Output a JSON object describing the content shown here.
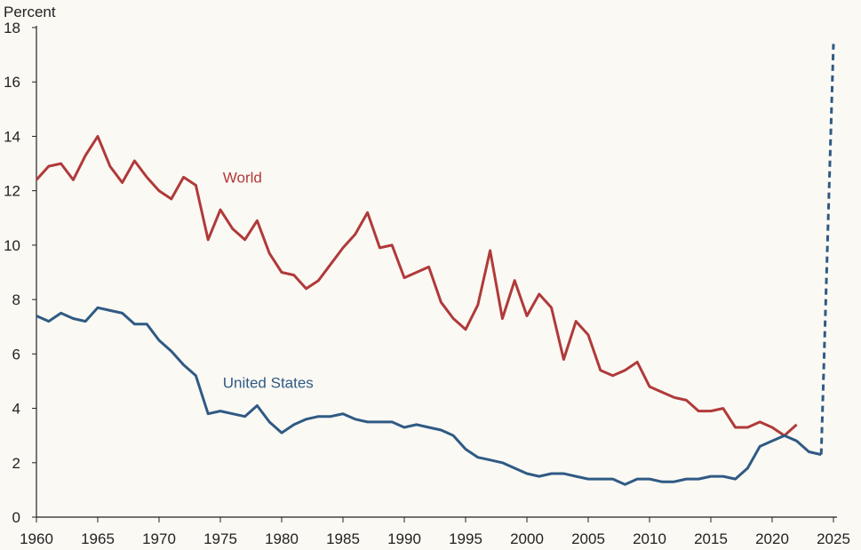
{
  "chart_data": {
    "type": "line",
    "ylabel": "Percent",
    "xlim": [
      1960,
      2025
    ],
    "ylim": [
      0,
      18
    ],
    "x_ticks": [
      1960,
      1965,
      1970,
      1975,
      1980,
      1985,
      1990,
      1995,
      2000,
      2005,
      2010,
      2015,
      2020,
      2025
    ],
    "y_ticks": [
      0,
      2,
      4,
      6,
      8,
      10,
      12,
      14,
      16,
      18
    ],
    "grid": false,
    "series": [
      {
        "name": "World",
        "color": "#b03a3a",
        "line_style": "solid",
        "x": [
          1960,
          1961,
          1962,
          1963,
          1964,
          1965,
          1966,
          1967,
          1968,
          1969,
          1970,
          1971,
          1972,
          1973,
          1974,
          1975,
          1976,
          1977,
          1978,
          1979,
          1980,
          1981,
          1982,
          1983,
          1984,
          1985,
          1986,
          1987,
          1988,
          1989,
          1990,
          1991,
          1992,
          1993,
          1994,
          1995,
          1996,
          1997,
          1998,
          1999,
          2000,
          2001,
          2002,
          2003,
          2004,
          2005,
          2006,
          2007,
          2008,
          2009,
          2010,
          2011,
          2012,
          2013,
          2014,
          2015,
          2016,
          2017,
          2018,
          2019,
          2020,
          2021,
          2022
        ],
        "y": [
          12.4,
          12.9,
          13.0,
          12.4,
          13.3,
          14.0,
          12.9,
          12.3,
          13.1,
          12.5,
          12.0,
          11.7,
          12.5,
          12.2,
          10.2,
          11.3,
          10.6,
          10.2,
          10.9,
          9.7,
          9.0,
          8.9,
          8.4,
          8.7,
          9.3,
          9.9,
          10.4,
          11.2,
          9.9,
          10.0,
          8.8,
          9.0,
          9.2,
          7.9,
          7.3,
          6.9,
          7.8,
          9.8,
          7.3,
          8.7,
          7.4,
          8.2,
          7.7,
          5.8,
          7.2,
          6.7,
          5.4,
          5.2,
          5.4,
          5.7,
          4.8,
          4.6,
          4.4,
          4.3,
          3.9,
          3.9,
          4.0,
          3.3,
          3.3,
          3.5,
          3.3,
          3.0,
          3.4
        ]
      },
      {
        "name": "United States",
        "color": "#2f5a84",
        "line_style": "solid",
        "x": [
          1960,
          1961,
          1962,
          1963,
          1964,
          1965,
          1966,
          1967,
          1968,
          1969,
          1970,
          1971,
          1972,
          1973,
          1974,
          1975,
          1976,
          1977,
          1978,
          1979,
          1980,
          1981,
          1982,
          1983,
          1984,
          1985,
          1986,
          1987,
          1988,
          1989,
          1990,
          1991,
          1992,
          1993,
          1994,
          1995,
          1996,
          1997,
          1998,
          1999,
          2000,
          2001,
          2002,
          2003,
          2004,
          2005,
          2006,
          2007,
          2008,
          2009,
          2010,
          2011,
          2012,
          2013,
          2014,
          2015,
          2016,
          2017,
          2018,
          2019,
          2020,
          2021,
          2022,
          2023,
          2024
        ],
        "y": [
          7.4,
          7.2,
          7.5,
          7.3,
          7.2,
          7.7,
          7.6,
          7.5,
          7.1,
          7.1,
          6.5,
          6.1,
          5.6,
          5.2,
          3.8,
          3.9,
          3.8,
          3.7,
          4.1,
          3.5,
          3.1,
          3.4,
          3.6,
          3.7,
          3.7,
          3.8,
          3.6,
          3.5,
          3.5,
          3.5,
          3.3,
          3.4,
          3.3,
          3.2,
          3.0,
          2.5,
          2.2,
          2.1,
          2.0,
          1.8,
          1.6,
          1.5,
          1.6,
          1.6,
          1.5,
          1.4,
          1.4,
          1.4,
          1.2,
          1.4,
          1.4,
          1.3,
          1.3,
          1.4,
          1.4,
          1.5,
          1.5,
          1.4,
          1.8,
          2.6,
          2.8,
          3.0,
          2.8,
          2.4,
          2.3
        ]
      },
      {
        "name": "",
        "color": "#2f5a84",
        "line_style": "dashed",
        "x": [
          2024,
          2025
        ],
        "y": [
          2.3,
          17.4
        ]
      }
    ],
    "annotations": [
      {
        "text": "World",
        "x": 1975.2,
        "y": 12.3,
        "color": "#b03a3a"
      },
      {
        "text": "United States",
        "x": 1975.2,
        "y": 4.75,
        "color": "#2f5a84"
      }
    ]
  }
}
